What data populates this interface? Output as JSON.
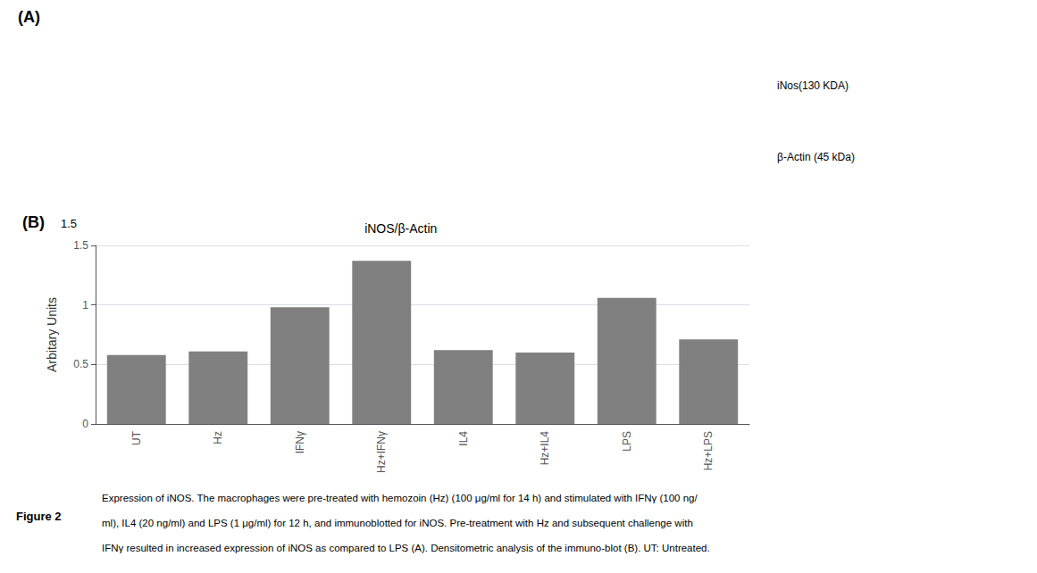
{
  "chart_data": {
    "type": "bar",
    "title": "iNOS/β-Actin",
    "categories": [
      "UT",
      "Hz",
      "IFNγ",
      "Hz+IFNγ",
      "IL4",
      "Hz+IL4",
      "LPS",
      "Hz+LPS"
    ],
    "values": [
      0.58,
      0.61,
      0.98,
      1.37,
      0.62,
      0.6,
      1.06,
      0.71
    ],
    "color": "#808080",
    "y_label": "Arbitary Units",
    "ylim": [
      0,
      1.5
    ],
    "yticks": [
      0,
      0.5,
      1,
      1.5
    ],
    "grid": true,
    "annotations": [
      "(A)",
      "iNos(130 KDA)",
      "β-Actin (45 kDa)",
      "(B)",
      "1.5",
      "Figure 2",
      "Expression of iNOS. The macrophages were pre-treated with hemozoin (Hz) (100 μg/ml for 14 h) and stimulated with IFNγ (100 ng/",
      "ml), IL4 (20 ng/ml) and LPS (1 μg/ml) for 12 h, and immunoblotted for iNOS. Pre-treatment with Hz and subsequent challenge with",
      "IFNγ resulted in increased expression of iNOS as compared to LPS (A). Densitometric analysis of the immuno-blot (B). UT: Untreated."
    ]
  }
}
